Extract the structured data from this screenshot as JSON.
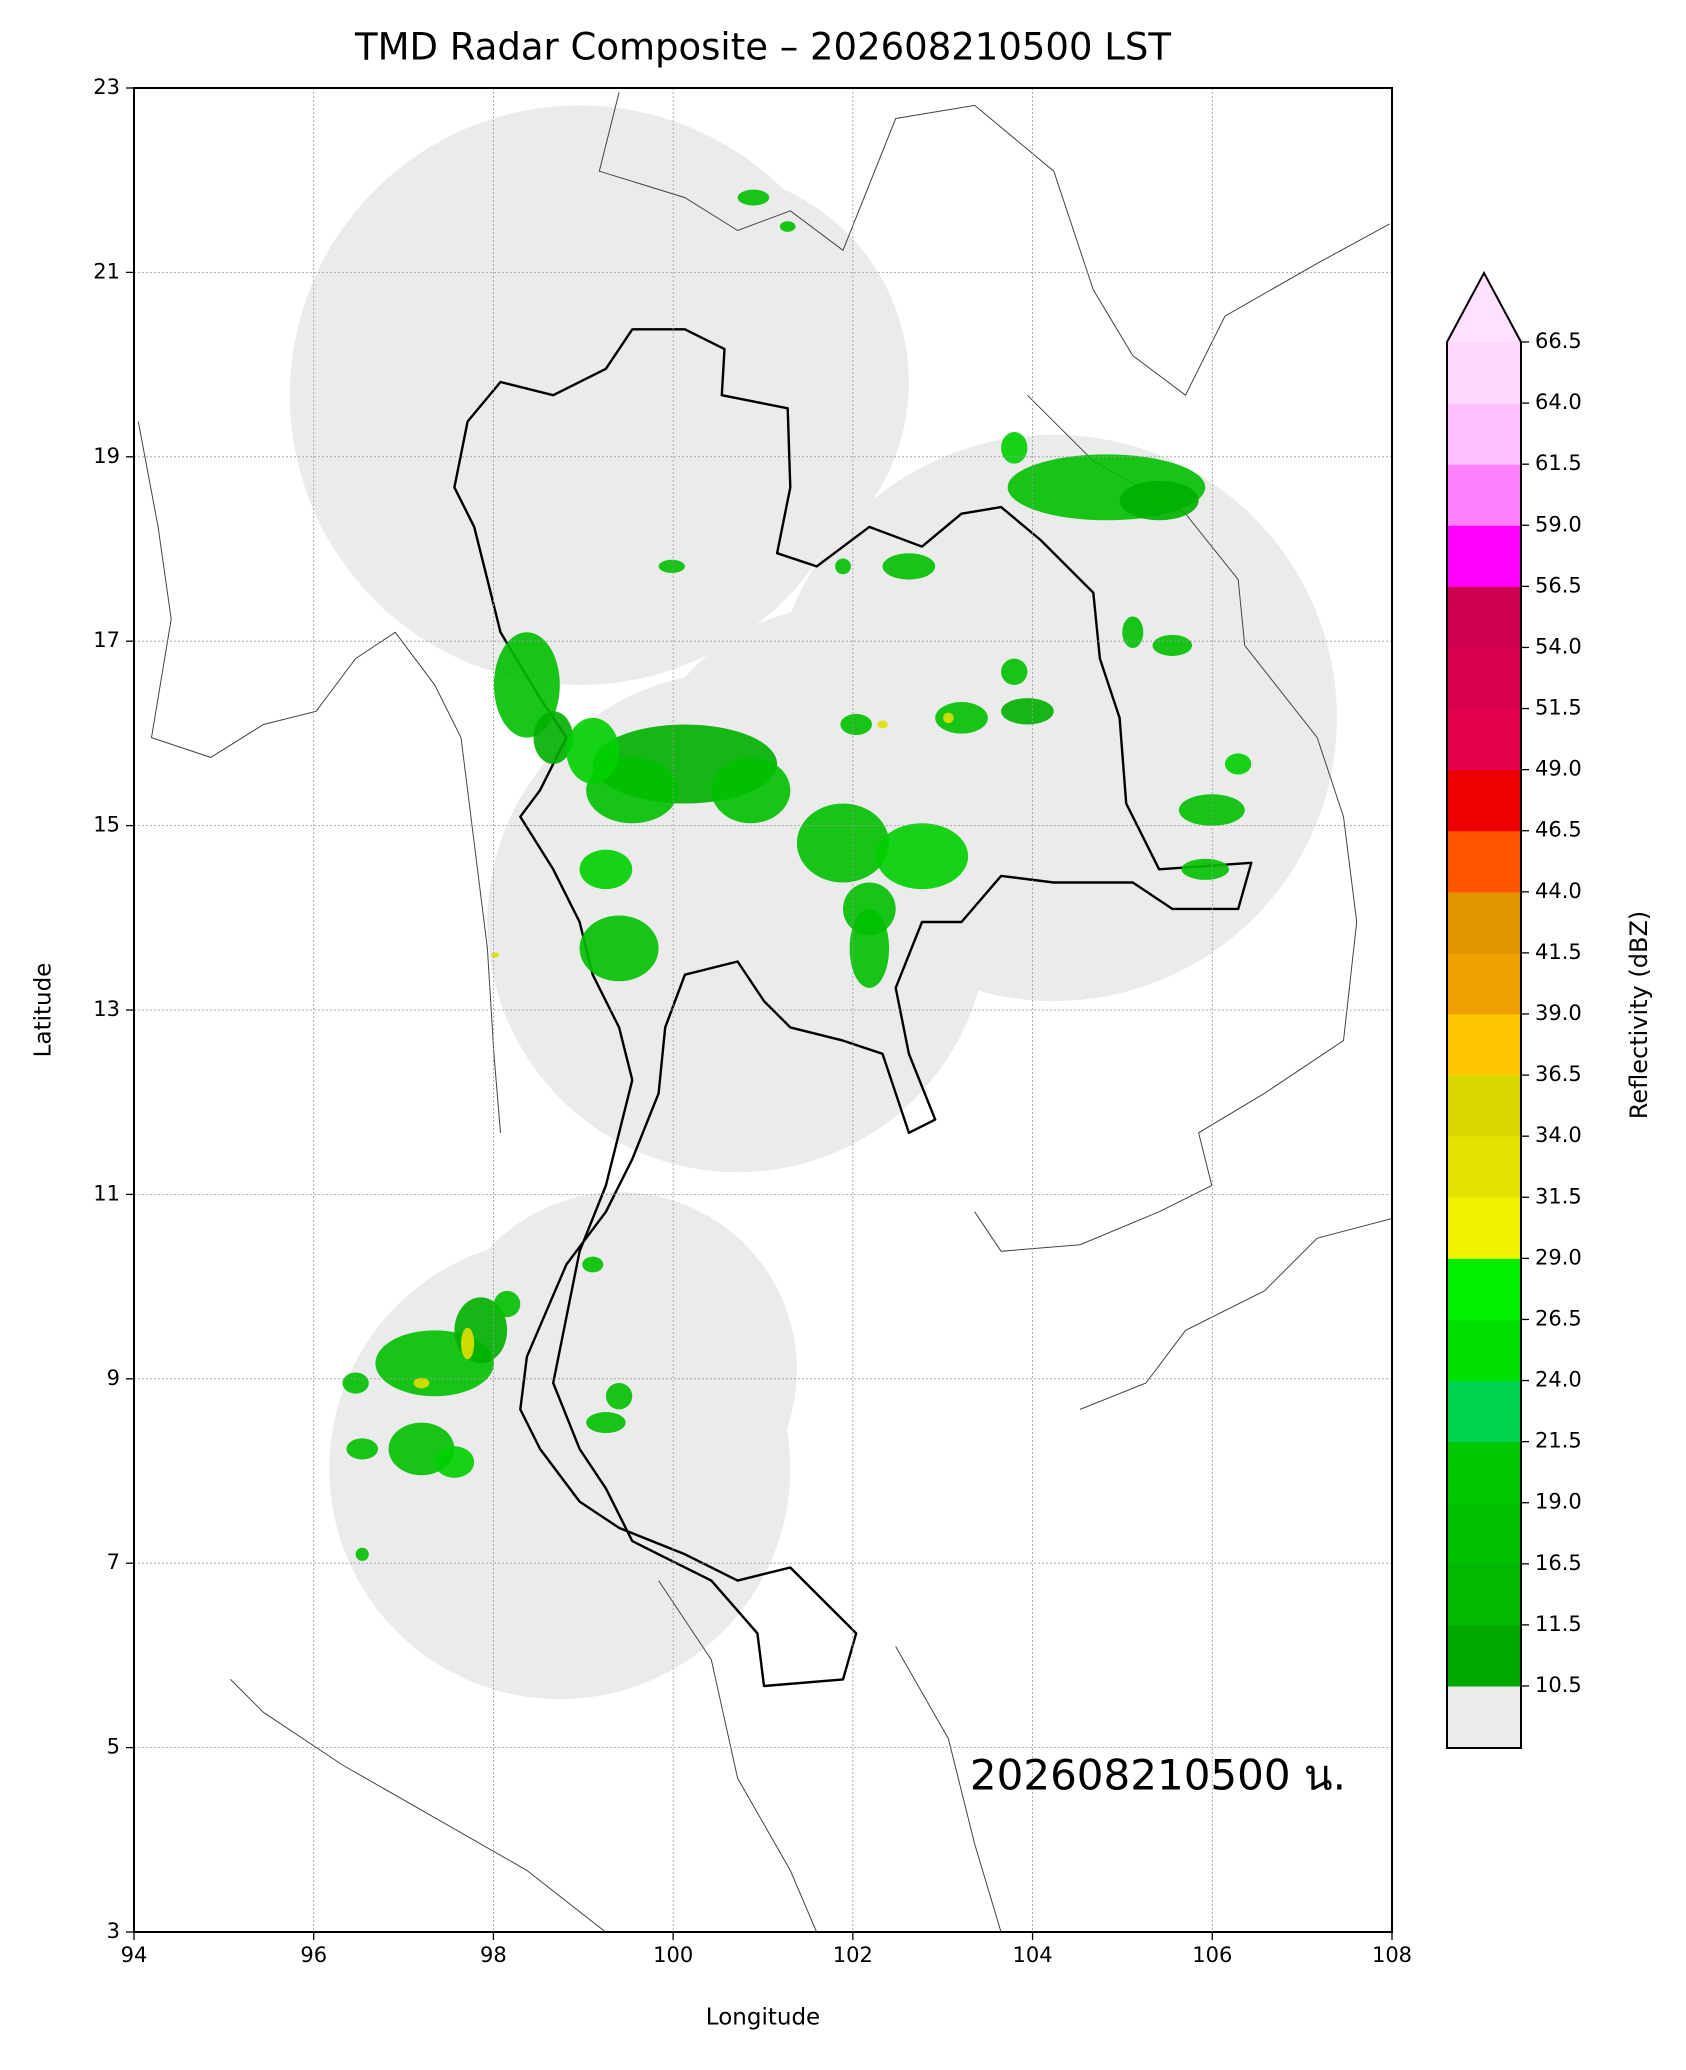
{
  "chart_data": {
    "type": "map",
    "title": "TMD Radar Composite – 202608210500 LST",
    "x_label": "Longitude",
    "y_label": "Latitude",
    "annotation": "202608210500 น.",
    "xlim": [
      94,
      108
    ],
    "xticks": [
      94,
      96,
      98,
      100,
      102,
      104,
      106,
      108
    ],
    "ylim": [
      3,
      23
    ],
    "yticks": [
      3,
      5,
      7,
      9,
      11,
      13,
      15,
      17,
      19,
      21,
      23
    ],
    "grid": true,
    "coverage_color": "#ebebeb",
    "colorbar": {
      "label": "Reflectivity (dBZ)",
      "ticks": [
        10.5,
        11.5,
        16.5,
        {
          "value": 19,
          "label": "19.0"
        },
        21.5,
        {
          "value": 24,
          "label": "24.0"
        },
        26.5,
        {
          "value": 29,
          "label": "29.0"
        },
        31.5,
        {
          "value": 34,
          "label": "34.0"
        },
        36.5,
        {
          "value": 39,
          "label": "39.0"
        },
        41.5,
        {
          "value": 44,
          "label": "44.0"
        },
        46.5,
        {
          "value": 49,
          "label": "49.0"
        },
        51.5,
        {
          "value": 54,
          "label": "54.0"
        },
        56.5,
        {
          "value": 59,
          "label": "59.0"
        },
        61.5,
        {
          "value": 64,
          "label": "64.0"
        },
        66.5
      ],
      "colors": [
        "#00a900",
        "#00b900",
        "#00c000",
        "#00c800",
        "#00d250",
        "#00e000",
        "#00f000",
        "#f2f200",
        "#e2e200",
        "#d8d800",
        "#ffc800",
        "#f0a000",
        "#e09400",
        "#ff5500",
        "#ee0000",
        "#e4004e",
        "#d8004e",
        "#cc004e",
        "#ff00ff",
        "#ff80ff",
        "#ffc0ff",
        "#ffd8ff"
      ],
      "under_color": "#ececec",
      "over_color": "#ffe0ff"
    }
  }
}
